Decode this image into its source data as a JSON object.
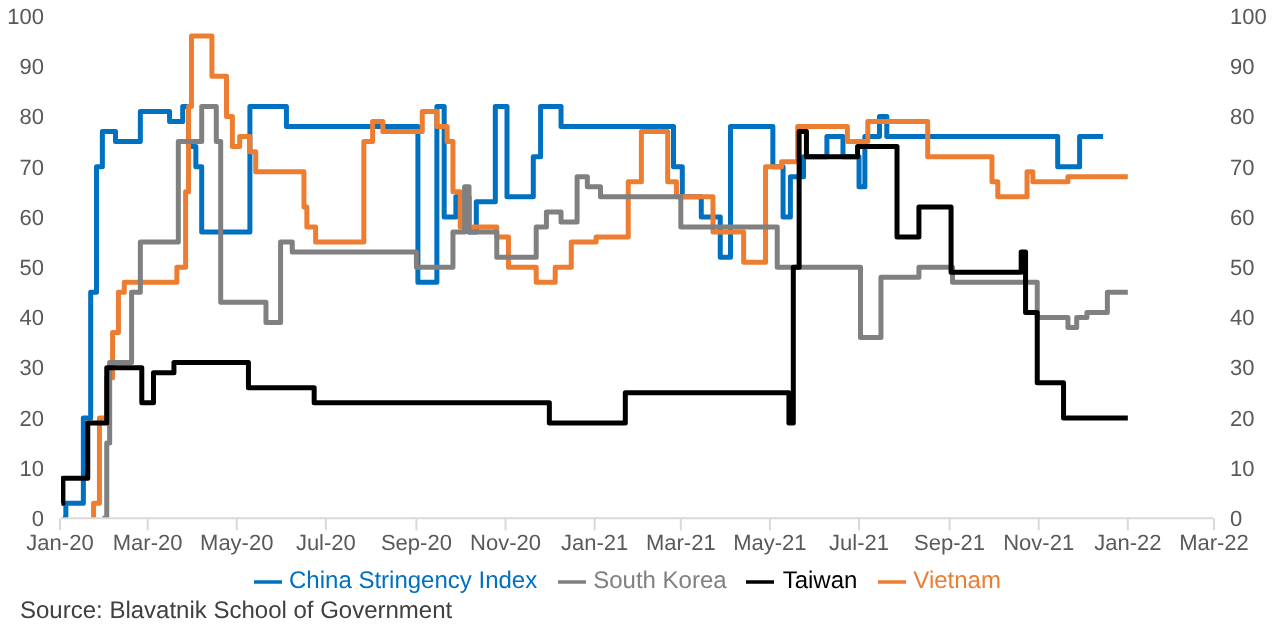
{
  "chart_data": {
    "type": "step",
    "annotations": [
      "Source: Blavatnik School of Government"
    ],
    "xlim": [
      "2020-01",
      "2022-03"
    ],
    "xticks": [
      {
        "value": "2020-01",
        "label": "Jan-20"
      },
      {
        "value": "2020-03",
        "label": "Mar-20"
      },
      {
        "value": "2020-05",
        "label": "May-20"
      },
      {
        "value": "2020-07",
        "label": "Jul-20"
      },
      {
        "value": "2020-09",
        "label": "Sep-20"
      },
      {
        "value": "2020-11",
        "label": "Nov-20"
      },
      {
        "value": "2021-01",
        "label": "Jan-21"
      },
      {
        "value": "2021-03",
        "label": "Mar-21"
      },
      {
        "value": "2021-05",
        "label": "May-21"
      },
      {
        "value": "2021-07",
        "label": "Jul-21"
      },
      {
        "value": "2021-09",
        "label": "Sep-21"
      },
      {
        "value": "2021-11",
        "label": "Nov-21"
      },
      {
        "value": "2022-01",
        "label": "Jan-22"
      },
      {
        "value": "2022-03",
        "label": "Mar-22"
      }
    ],
    "ylim": [
      0,
      100
    ],
    "yticks": [
      0,
      10,
      20,
      30,
      40,
      50,
      60,
      70,
      80,
      90,
      100
    ],
    "y2lim": [
      0,
      100
    ],
    "y2ticks": [
      0,
      10,
      20,
      30,
      40,
      50,
      60,
      70,
      80,
      90,
      100
    ],
    "grid": false,
    "legend": "bottom",
    "marker": "none",
    "line_style": "solid",
    "series": [
      {
        "name": "China Stringency Index",
        "color": "#0070c0",
        "x": [
          "2020-01-03",
          "2020-01-05",
          "2020-01-17",
          "2020-01-22",
          "2020-01-26",
          "2020-01-30",
          "2020-02-08",
          "2020-02-25",
          "2020-03-16",
          "2020-03-25",
          "2020-03-29",
          "2020-04-03",
          "2020-04-07",
          "2020-05-10",
          "2020-06-04",
          "2020-09-02",
          "2020-09-15",
          "2020-09-20",
          "2020-09-28",
          "2020-10-07",
          "2020-10-12",
          "2020-10-25",
          "2020-11-02",
          "2020-11-20",
          "2020-11-25",
          "2020-12-09",
          "2021-02-24",
          "2021-03-02",
          "2021-03-15",
          "2021-03-28",
          "2021-04-04",
          "2021-05-03",
          "2021-05-10",
          "2021-05-15",
          "2021-05-24",
          "2021-06-09",
          "2021-06-20",
          "2021-07-01",
          "2021-07-05",
          "2021-07-15",
          "2021-07-20",
          "2021-11-14",
          "2021-11-29",
          "2021-12-15"
        ],
        "values": [
          0,
          3,
          20,
          45,
          70,
          77,
          75,
          81,
          79,
          82,
          74,
          70,
          57,
          82,
          78,
          47,
          82,
          60,
          64,
          57,
          63,
          82,
          64,
          72,
          82,
          78,
          70,
          64,
          60,
          52,
          78,
          70,
          60,
          68,
          72,
          76,
          72,
          66,
          76,
          80,
          76,
          70,
          76,
          76
        ]
      },
      {
        "name": "Vietnam",
        "color": "#ed7d31",
        "x": [
          "2020-01-23",
          "2020-01-24",
          "2020-01-28",
          "2020-02-02",
          "2020-02-06",
          "2020-02-10",
          "2020-02-14",
          "2020-03-21",
          "2020-03-27",
          "2020-03-29",
          "2020-03-31",
          "2020-04-14",
          "2020-04-24",
          "2020-04-28",
          "2020-05-03",
          "2020-05-10",
          "2020-05-14",
          "2020-06-16",
          "2020-06-18",
          "2020-06-24",
          "2020-07-27",
          "2020-08-02",
          "2020-08-09",
          "2020-09-05",
          "2020-09-15",
          "2020-09-22",
          "2020-09-26",
          "2020-10-01",
          "2020-10-26",
          "2020-11-03",
          "2020-11-22",
          "2020-12-05",
          "2020-12-16",
          "2021-01-02",
          "2021-01-24",
          "2021-02-02",
          "2021-02-20",
          "2021-02-26",
          "2021-03-23",
          "2021-04-13",
          "2021-04-28",
          "2021-05-09",
          "2021-05-20",
          "2021-06-23",
          "2021-07-07",
          "2021-08-17",
          "2021-09-30",
          "2021-10-04",
          "2021-10-24",
          "2021-10-28",
          "2021-11-21",
          "2022-01-01"
        ],
        "values": [
          0,
          3,
          20,
          28,
          37,
          45,
          47,
          50,
          65,
          82,
          96,
          88,
          80,
          74,
          76,
          73,
          69,
          62,
          58,
          55,
          75,
          79,
          77,
          81,
          78,
          75,
          65,
          58,
          56,
          50,
          47,
          50,
          55,
          56,
          67,
          77,
          67,
          64,
          57,
          51,
          70,
          71,
          78,
          75,
          79,
          72,
          67,
          64,
          69,
          67,
          68,
          68
        ]
      },
      {
        "name": "South Korea",
        "color": "#808080",
        "x": [
          "2020-01-30",
          "2020-02-02",
          "2020-02-04",
          "2020-02-19",
          "2020-02-25",
          "2020-03-22",
          "2020-04-07",
          "2020-04-17",
          "2020-04-20",
          "2020-05-21",
          "2020-05-31",
          "2020-06-08",
          "2020-09-01",
          "2020-09-26",
          "2020-10-04",
          "2020-10-07",
          "2020-10-26",
          "2020-11-22",
          "2020-11-29",
          "2020-12-09",
          "2020-12-20",
          "2020-12-27",
          "2021-01-05",
          "2021-03-01",
          "2021-05-06",
          "2021-07-02",
          "2021-07-16",
          "2021-08-11",
          "2021-09-03",
          "2021-10-31",
          "2021-11-21",
          "2021-11-27",
          "2021-12-04",
          "2021-12-18",
          "2022-01-01"
        ],
        "values": [
          0,
          15,
          31,
          45,
          55,
          75,
          82,
          75,
          43,
          39,
          55,
          53,
          50,
          57,
          66,
          57,
          52,
          58,
          61,
          59,
          68,
          66,
          64,
          58,
          50,
          36,
          48,
          50,
          47,
          40,
          38,
          40,
          41,
          45,
          45
        ]
      },
      {
        "name": "Taiwan",
        "color": "#000000",
        "x": [
          "2020-01-02",
          "2020-01-03",
          "2020-01-20",
          "2020-02-02",
          "2020-02-26",
          "2020-03-05",
          "2020-03-19",
          "2020-05-09",
          "2020-06-23",
          "2020-12-01",
          "2021-01-22",
          "2021-05-14",
          "2021-05-17",
          "2021-05-21",
          "2021-05-26",
          "2021-06-30",
          "2021-07-27",
          "2021-08-11",
          "2021-09-02",
          "2021-10-20",
          "2021-10-23",
          "2021-10-31",
          "2021-11-18",
          "2022-01-01"
        ],
        "values": [
          3,
          8,
          19,
          30,
          23,
          29,
          31,
          26,
          23,
          19,
          25,
          19,
          50,
          77,
          72,
          74,
          56,
          62,
          49,
          53,
          41,
          27,
          20,
          20
        ]
      }
    ]
  }
}
